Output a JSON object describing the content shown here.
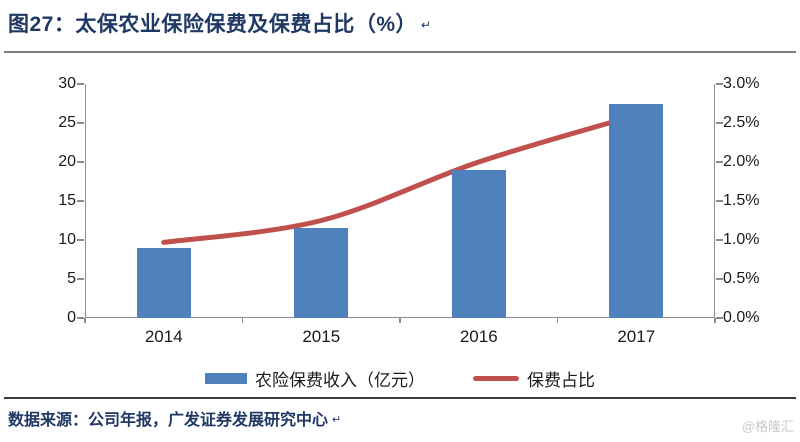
{
  "title": "图27：太保农业保险保费及保费占比（%）",
  "paragraph_mark": "↵",
  "chart_data": {
    "type": "bar+line",
    "categories": [
      "2014",
      "2015",
      "2016",
      "2017"
    ],
    "series": [
      {
        "name": "农险保费收入（亿元）",
        "type": "bar",
        "axis": "left",
        "values": [
          9.0,
          11.5,
          19.0,
          27.5
        ],
        "color": "#4f81bd"
      },
      {
        "name": "保费占比",
        "type": "line",
        "axis": "right",
        "values": [
          0.97,
          1.25,
          2.0,
          2.6
        ],
        "color": "#c0504d",
        "smooth": true
      }
    ],
    "left_axis": {
      "min": 0,
      "max": 30,
      "step": 5,
      "tick_labels": [
        "0",
        "5",
        "10",
        "15",
        "20",
        "25",
        "30"
      ]
    },
    "right_axis": {
      "min": 0,
      "max": 3,
      "step": 0.5,
      "tick_labels": [
        "0.0%",
        "0.5%",
        "1.0%",
        "1.5%",
        "2.0%",
        "2.5%",
        "3.0%"
      ]
    },
    "grid": false,
    "legend_position": "bottom"
  },
  "legend": {
    "bar_label": "农险保费收入（亿元）",
    "line_label": "保费占比"
  },
  "footer": {
    "source": "数据来源：公司年报，广发证券发展研究中心",
    "watermark": "@格隆汇"
  },
  "colors": {
    "bar": "#4f81bd",
    "line": "#c0504d",
    "title_text": "#1f3864",
    "axis_line": "#8c8c8c",
    "tick_text": "#1a1a1a",
    "rule_top": "#7f7f7f",
    "rule_bottom": "#3d3d3d",
    "watermark_text": "#c8c8c8"
  }
}
